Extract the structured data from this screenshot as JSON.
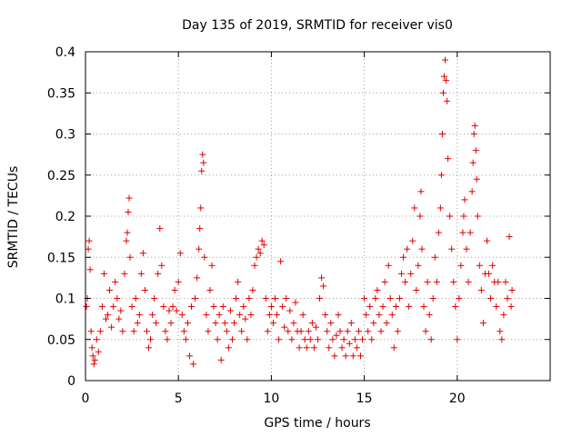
{
  "chart_data": {
    "type": "scatter",
    "title": "Day 135 of 2019, SRMTID for receiver vis0",
    "xlabel": "GPS time / hours",
    "ylabel": "SRMTID / TECUs",
    "xlim": [
      0,
      25
    ],
    "ylim": [
      0,
      0.4
    ],
    "grid": true,
    "marker": "+",
    "series_color": "#e00000",
    "x_ticks": [
      {
        "value": 0,
        "label": "0"
      },
      {
        "value": 5,
        "label": "5"
      },
      {
        "value": 10,
        "label": "10"
      },
      {
        "value": 15,
        "label": "15"
      },
      {
        "value": 20,
        "label": "20"
      }
    ],
    "y_ticks": [
      {
        "value": 0,
        "label": "0"
      },
      {
        "value": 0.05,
        "label": "0.05"
      },
      {
        "value": 0.1,
        "label": "0.1"
      },
      {
        "value": 0.15,
        "label": "0.15"
      },
      {
        "value": 0.2,
        "label": "0.2"
      },
      {
        "value": 0.25,
        "label": "0.25"
      },
      {
        "value": 0.3,
        "label": "0.3"
      },
      {
        "value": 0.35,
        "label": "0.35"
      },
      {
        "value": 0.4,
        "label": "0.4"
      }
    ],
    "points": [
      [
        0.05,
        0.09
      ],
      [
        0.1,
        0.1
      ],
      [
        0.15,
        0.16
      ],
      [
        0.2,
        0.17
      ],
      [
        0.25,
        0.135
      ],
      [
        0.3,
        0.06
      ],
      [
        0.35,
        0.04
      ],
      [
        0.4,
        0.03
      ],
      [
        0.45,
        0.02
      ],
      [
        0.5,
        0.025
      ],
      [
        0.6,
        0.05
      ],
      [
        0.7,
        0.035
      ],
      [
        0.8,
        0.06
      ],
      [
        0.9,
        0.09
      ],
      [
        1.0,
        0.13
      ],
      [
        1.1,
        0.075
      ],
      [
        1.2,
        0.08
      ],
      [
        1.3,
        0.11
      ],
      [
        1.4,
        0.065
      ],
      [
        1.5,
        0.09
      ],
      [
        1.6,
        0.12
      ],
      [
        1.7,
        0.1
      ],
      [
        1.8,
        0.075
      ],
      [
        1.9,
        0.085
      ],
      [
        2.0,
        0.06
      ],
      [
        2.1,
        0.13
      ],
      [
        2.2,
        0.17
      ],
      [
        2.25,
        0.18
      ],
      [
        2.3,
        0.205
      ],
      [
        2.35,
        0.222
      ],
      [
        2.4,
        0.15
      ],
      [
        2.5,
        0.09
      ],
      [
        2.6,
        0.06
      ],
      [
        2.7,
        0.1
      ],
      [
        2.8,
        0.07
      ],
      [
        2.9,
        0.08
      ],
      [
        3.0,
        0.13
      ],
      [
        3.1,
        0.155
      ],
      [
        3.2,
        0.11
      ],
      [
        3.3,
        0.06
      ],
      [
        3.4,
        0.04
      ],
      [
        3.5,
        0.05
      ],
      [
        3.6,
        0.08
      ],
      [
        3.7,
        0.1
      ],
      [
        3.8,
        0.07
      ],
      [
        3.9,
        0.13
      ],
      [
        4.0,
        0.185
      ],
      [
        4.1,
        0.14
      ],
      [
        4.2,
        0.09
      ],
      [
        4.3,
        0.06
      ],
      [
        4.4,
        0.05
      ],
      [
        4.5,
        0.085
      ],
      [
        4.6,
        0.07
      ],
      [
        4.7,
        0.09
      ],
      [
        4.8,
        0.11
      ],
      [
        4.9,
        0.085
      ],
      [
        5.0,
        0.12
      ],
      [
        5.1,
        0.155
      ],
      [
        5.2,
        0.08
      ],
      [
        5.3,
        0.06
      ],
      [
        5.4,
        0.05
      ],
      [
        5.5,
        0.07
      ],
      [
        5.6,
        0.03
      ],
      [
        5.7,
        0.09
      ],
      [
        5.8,
        0.02
      ],
      [
        5.9,
        0.1
      ],
      [
        6.0,
        0.125
      ],
      [
        6.1,
        0.16
      ],
      [
        6.15,
        0.185
      ],
      [
        6.2,
        0.21
      ],
      [
        6.25,
        0.255
      ],
      [
        6.3,
        0.275
      ],
      [
        6.35,
        0.265
      ],
      [
        6.4,
        0.15
      ],
      [
        6.5,
        0.08
      ],
      [
        6.6,
        0.06
      ],
      [
        6.7,
        0.11
      ],
      [
        6.8,
        0.14
      ],
      [
        6.9,
        0.09
      ],
      [
        7.0,
        0.07
      ],
      [
        7.1,
        0.05
      ],
      [
        7.2,
        0.08
      ],
      [
        7.3,
        0.025
      ],
      [
        7.4,
        0.09
      ],
      [
        7.5,
        0.07
      ],
      [
        7.6,
        0.06
      ],
      [
        7.7,
        0.04
      ],
      [
        7.8,
        0.085
      ],
      [
        7.9,
        0.05
      ],
      [
        8.0,
        0.07
      ],
      [
        8.1,
        0.1
      ],
      [
        8.2,
        0.12
      ],
      [
        8.3,
        0.08
      ],
      [
        8.4,
        0.06
      ],
      [
        8.5,
        0.09
      ],
      [
        8.6,
        0.075
      ],
      [
        8.7,
        0.05
      ],
      [
        8.8,
        0.1
      ],
      [
        8.9,
        0.08
      ],
      [
        9.0,
        0.11
      ],
      [
        9.1,
        0.14
      ],
      [
        9.2,
        0.15
      ],
      [
        9.3,
        0.16
      ],
      [
        9.4,
        0.155
      ],
      [
        9.5,
        0.17
      ],
      [
        9.6,
        0.165
      ],
      [
        9.7,
        0.1
      ],
      [
        9.8,
        0.06
      ],
      [
        9.9,
        0.08
      ],
      [
        10.0,
        0.09
      ],
      [
        10.1,
        0.07
      ],
      [
        10.2,
        0.1
      ],
      [
        10.3,
        0.08
      ],
      [
        10.4,
        0.05
      ],
      [
        10.5,
        0.145
      ],
      [
        10.6,
        0.09
      ],
      [
        10.7,
        0.065
      ],
      [
        10.8,
        0.1
      ],
      [
        10.9,
        0.06
      ],
      [
        11.0,
        0.085
      ],
      [
        11.1,
        0.05
      ],
      [
        11.2,
        0.07
      ],
      [
        11.3,
        0.095
      ],
      [
        11.4,
        0.06
      ],
      [
        11.5,
        0.04
      ],
      [
        11.6,
        0.06
      ],
      [
        11.7,
        0.08
      ],
      [
        11.8,
        0.05
      ],
      [
        11.9,
        0.04
      ],
      [
        12.0,
        0.06
      ],
      [
        12.1,
        0.05
      ],
      [
        12.2,
        0.07
      ],
      [
        12.3,
        0.04
      ],
      [
        12.4,
        0.065
      ],
      [
        12.5,
        0.05
      ],
      [
        12.6,
        0.1
      ],
      [
        12.7,
        0.125
      ],
      [
        12.8,
        0.115
      ],
      [
        12.9,
        0.08
      ],
      [
        13.0,
        0.06
      ],
      [
        13.1,
        0.04
      ],
      [
        13.2,
        0.07
      ],
      [
        13.3,
        0.05
      ],
      [
        13.4,
        0.03
      ],
      [
        13.5,
        0.055
      ],
      [
        13.6,
        0.08
      ],
      [
        13.7,
        0.06
      ],
      [
        13.8,
        0.04
      ],
      [
        13.9,
        0.05
      ],
      [
        14.0,
        0.03
      ],
      [
        14.1,
        0.06
      ],
      [
        14.2,
        0.045
      ],
      [
        14.3,
        0.07
      ],
      [
        14.4,
        0.03
      ],
      [
        14.5,
        0.05
      ],
      [
        14.6,
        0.04
      ],
      [
        14.7,
        0.06
      ],
      [
        14.8,
        0.03
      ],
      [
        14.9,
        0.05
      ],
      [
        15.0,
        0.1
      ],
      [
        15.1,
        0.08
      ],
      [
        15.2,
        0.06
      ],
      [
        15.3,
        0.09
      ],
      [
        15.4,
        0.05
      ],
      [
        15.5,
        0.07
      ],
      [
        15.6,
        0.1
      ],
      [
        15.7,
        0.11
      ],
      [
        15.8,
        0.08
      ],
      [
        15.9,
        0.06
      ],
      [
        16.0,
        0.09
      ],
      [
        16.1,
        0.12
      ],
      [
        16.2,
        0.07
      ],
      [
        16.3,
        0.14
      ],
      [
        16.4,
        0.1
      ],
      [
        16.5,
        0.08
      ],
      [
        16.6,
        0.04
      ],
      [
        16.7,
        0.09
      ],
      [
        16.8,
        0.06
      ],
      [
        16.9,
        0.1
      ],
      [
        17.0,
        0.13
      ],
      [
        17.1,
        0.15
      ],
      [
        17.2,
        0.12
      ],
      [
        17.3,
        0.16
      ],
      [
        17.4,
        0.09
      ],
      [
        17.5,
        0.13
      ],
      [
        17.6,
        0.17
      ],
      [
        17.7,
        0.21
      ],
      [
        17.8,
        0.11
      ],
      [
        17.9,
        0.14
      ],
      [
        18.0,
        0.2
      ],
      [
        18.05,
        0.23
      ],
      [
        18.1,
        0.16
      ],
      [
        18.2,
        0.09
      ],
      [
        18.3,
        0.06
      ],
      [
        18.4,
        0.12
      ],
      [
        18.5,
        0.08
      ],
      [
        18.6,
        0.05
      ],
      [
        18.7,
        0.1
      ],
      [
        18.8,
        0.15
      ],
      [
        18.9,
        0.12
      ],
      [
        19.0,
        0.18
      ],
      [
        19.1,
        0.21
      ],
      [
        19.15,
        0.25
      ],
      [
        19.2,
        0.3
      ],
      [
        19.25,
        0.35
      ],
      [
        19.3,
        0.37
      ],
      [
        19.35,
        0.39
      ],
      [
        19.4,
        0.365
      ],
      [
        19.45,
        0.34
      ],
      [
        19.5,
        0.27
      ],
      [
        19.6,
        0.2
      ],
      [
        19.7,
        0.16
      ],
      [
        19.8,
        0.12
      ],
      [
        19.9,
        0.09
      ],
      [
        20.0,
        0.05
      ],
      [
        20.1,
        0.1
      ],
      [
        20.2,
        0.14
      ],
      [
        20.3,
        0.18
      ],
      [
        20.35,
        0.2
      ],
      [
        20.4,
        0.22
      ],
      [
        20.5,
        0.16
      ],
      [
        20.6,
        0.12
      ],
      [
        20.7,
        0.18
      ],
      [
        20.8,
        0.23
      ],
      [
        20.85,
        0.265
      ],
      [
        20.9,
        0.3
      ],
      [
        20.95,
        0.31
      ],
      [
        21.0,
        0.28
      ],
      [
        21.05,
        0.245
      ],
      [
        21.1,
        0.2
      ],
      [
        21.2,
        0.14
      ],
      [
        21.3,
        0.11
      ],
      [
        21.4,
        0.07
      ],
      [
        21.5,
        0.13
      ],
      [
        21.6,
        0.17
      ],
      [
        21.7,
        0.13
      ],
      [
        21.8,
        0.1
      ],
      [
        21.9,
        0.14
      ],
      [
        22.0,
        0.12
      ],
      [
        22.1,
        0.09
      ],
      [
        22.2,
        0.12
      ],
      [
        22.3,
        0.06
      ],
      [
        22.4,
        0.05
      ],
      [
        22.5,
        0.08
      ],
      [
        22.6,
        0.12
      ],
      [
        22.7,
        0.1
      ],
      [
        22.8,
        0.175
      ],
      [
        22.9,
        0.09
      ],
      [
        22.95,
        0.11
      ]
    ]
  }
}
